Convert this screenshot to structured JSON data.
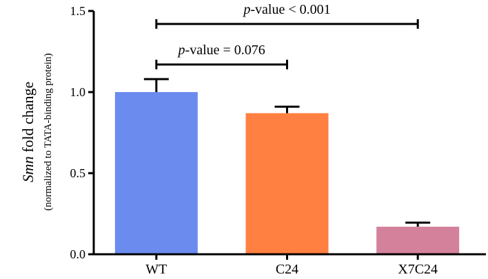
{
  "chart_data": {
    "type": "bar",
    "categories": [
      "WT",
      "C24",
      "X7C24"
    ],
    "values": [
      1.0,
      0.87,
      0.17
    ],
    "errors": [
      0.08,
      0.04,
      0.025
    ],
    "colors": [
      "#6b8cee",
      "#ff8040",
      "#d4829b"
    ],
    "ylabel_main": "Smn",
    "ylabel_main_suffix": " fold change",
    "ylabel_sub": "(normalized to TATA-binding protein)",
    "ylim": [
      0,
      1.5
    ],
    "yticks": [
      0.0,
      0.5,
      1.0,
      1.5
    ],
    "ytick_labels": [
      "0.0",
      "0.5",
      "1.0",
      "1.5"
    ],
    "annotations": [
      {
        "from": "WT",
        "to": "X7C24",
        "level": 1.42,
        "prefix": "p",
        "text": "-value < 0.001"
      },
      {
        "from": "WT",
        "to": "C24",
        "level": 1.17,
        "prefix": "p",
        "text": "-value = 0.076"
      }
    ]
  }
}
